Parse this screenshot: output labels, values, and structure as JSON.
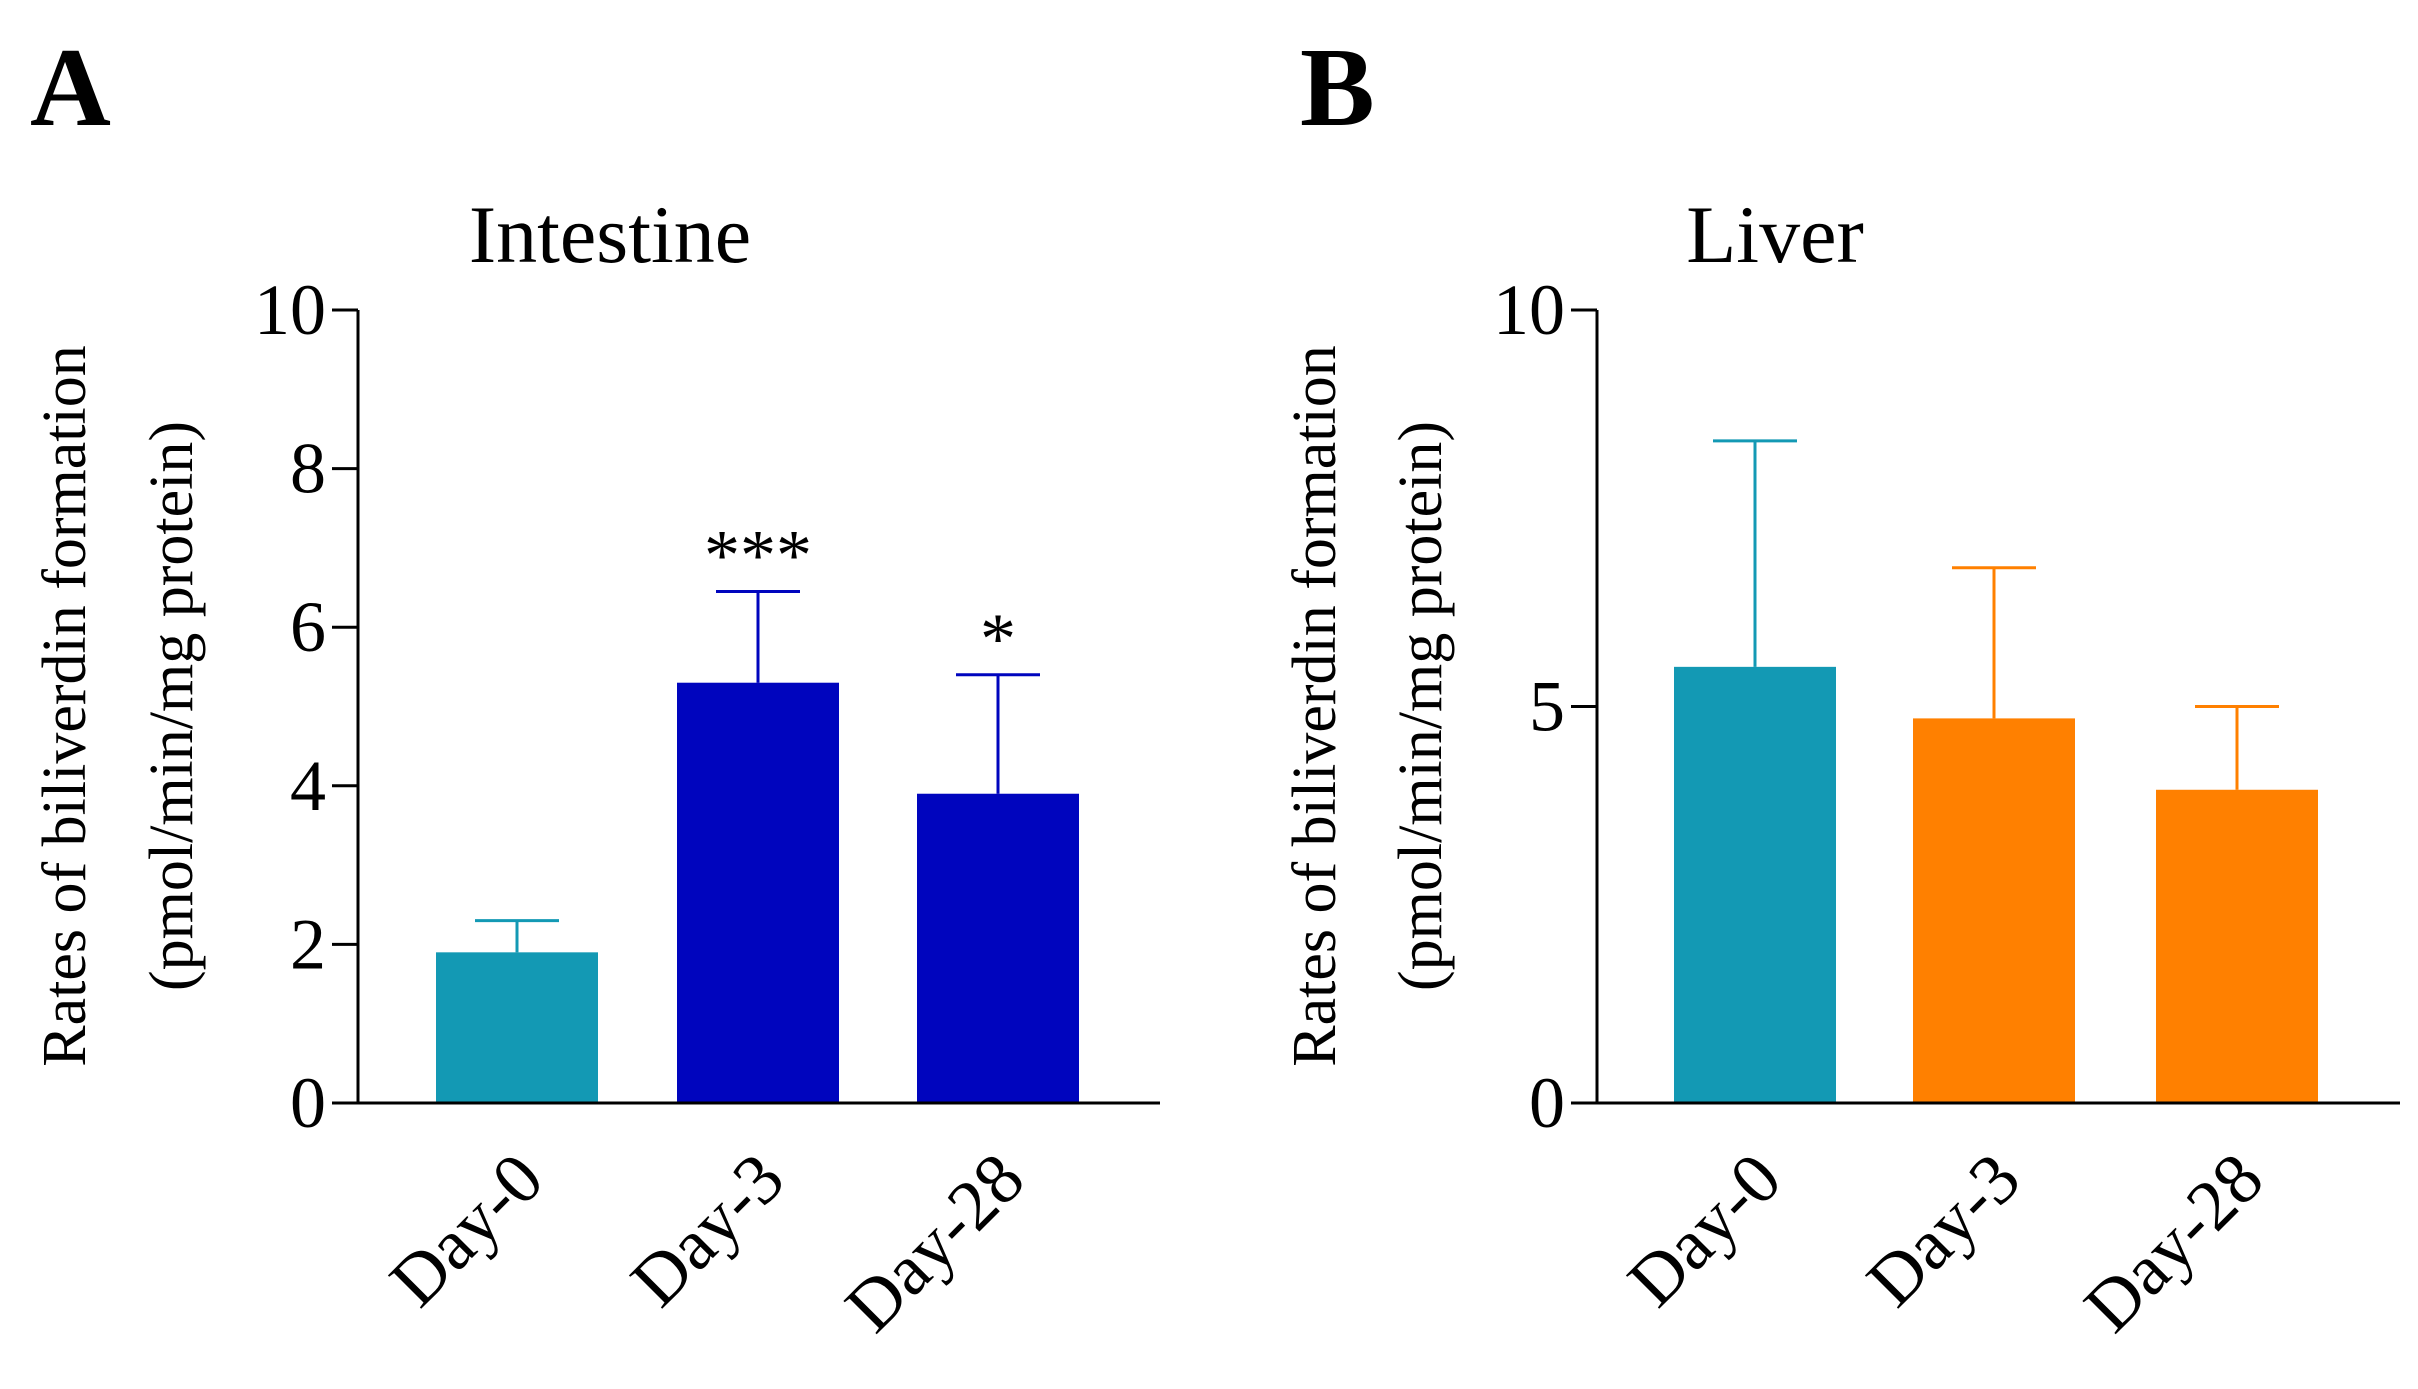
{
  "panels": [
    "A",
    "B"
  ],
  "chart_data": [
    {
      "type": "bar",
      "panel": "A",
      "title": "Intestine",
      "xlabel": "",
      "ylabel": [
        "Rates of biliverdin formation",
        "(pmol/min/mg protein)"
      ],
      "ylim": [
        0,
        10
      ],
      "yticks": [
        0,
        2,
        4,
        6,
        8,
        10
      ],
      "categories": [
        "Day-0",
        "Day-3",
        "Day-28"
      ],
      "values": [
        1.9,
        5.3,
        3.9
      ],
      "errors": [
        0.4,
        1.15,
        1.5
      ],
      "colors": [
        "#1399b4",
        "#0005be",
        "#0005be"
      ],
      "annotations": [
        "",
        "***",
        "*"
      ]
    },
    {
      "type": "bar",
      "panel": "B",
      "title": "Liver",
      "xlabel": "",
      "ylabel": [
        "Rates of biliverdin formation",
        "(pmol/min/mg protein)"
      ],
      "ylim": [
        0,
        10
      ],
      "yticks": [
        0,
        5,
        10
      ],
      "categories": [
        "Day-0",
        "Day-3",
        "Day-28"
      ],
      "values": [
        5.5,
        4.85,
        3.95
      ],
      "errors": [
        2.85,
        1.9,
        1.05
      ],
      "colors": [
        "#1399b4",
        "#ff8000",
        "#ff8000"
      ],
      "annotations": [
        "",
        "",
        ""
      ]
    }
  ]
}
